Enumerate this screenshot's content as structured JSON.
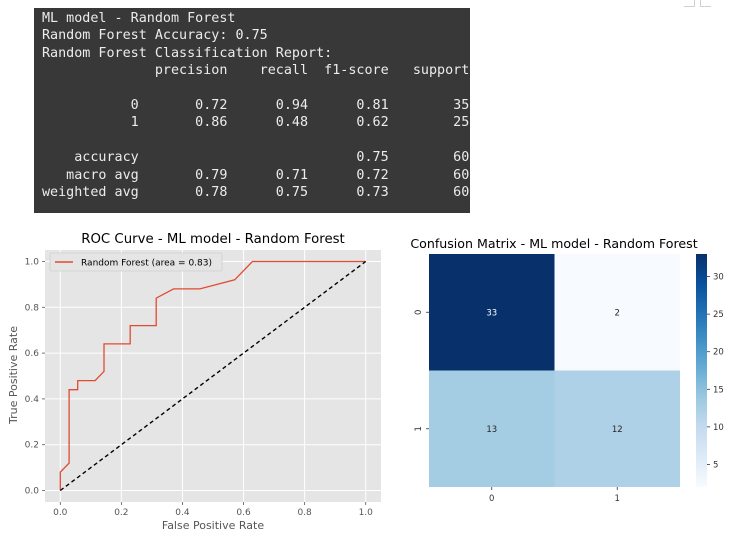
{
  "report": {
    "lines": [
      "ML model - Random Forest",
      "Random Forest Accuracy: 0.75",
      "Random Forest Classification Report:",
      "              precision    recall  f1-score   support",
      "",
      "           0       0.72      0.94      0.81        35",
      "           1       0.86      0.48      0.62        25",
      "",
      "    accuracy                           0.75        60",
      "   macro avg       0.79      0.71      0.72        60",
      "weighted avg       0.78      0.75      0.73        60"
    ]
  },
  "chart_data": [
    {
      "type": "line",
      "title": "ROC Curve - ML model - Random Forest",
      "xlabel": "False Positive Rate",
      "ylabel": "True Positive Rate",
      "xlim": [
        -0.05,
        1.05
      ],
      "ylim": [
        -0.05,
        1.05
      ],
      "xticks": [
        "0.0",
        "0.2",
        "0.4",
        "0.6",
        "0.8",
        "1.0"
      ],
      "yticks": [
        "0.0",
        "0.2",
        "0.4",
        "0.6",
        "0.8",
        "1.0"
      ],
      "grid": true,
      "legend": "upper-left",
      "series": [
        {
          "name": "Random Forest (area = 0.83)",
          "color": "#e24a33",
          "x": [
            0.0,
            0.0,
            0.029,
            0.029,
            0.057,
            0.057,
            0.086,
            0.086,
            0.114,
            0.143,
            0.143,
            0.229,
            0.229,
            0.314,
            0.314,
            0.371,
            0.457,
            0.571,
            0.629,
            1.0
          ],
          "y": [
            0.0,
            0.08,
            0.12,
            0.44,
            0.44,
            0.48,
            0.48,
            0.48,
            0.48,
            0.52,
            0.64,
            0.64,
            0.72,
            0.72,
            0.84,
            0.88,
            0.88,
            0.92,
            1.0,
            1.0
          ]
        },
        {
          "name": "",
          "style": "dashed",
          "color": "#000000",
          "x": [
            0,
            1
          ],
          "y": [
            0,
            1
          ]
        }
      ]
    },
    {
      "type": "heatmap",
      "title": "Confusion Matrix - ML model - Random Forest",
      "row_labels": [
        "0",
        "1"
      ],
      "col_labels": [
        "0",
        "1"
      ],
      "values": [
        [
          33,
          2
        ],
        [
          13,
          12
        ]
      ],
      "colormap": "Blues",
      "colorbar_ticks": [
        "5",
        "10",
        "15",
        "20",
        "25",
        "30"
      ],
      "colorbar_range": [
        2,
        33
      ]
    }
  ]
}
